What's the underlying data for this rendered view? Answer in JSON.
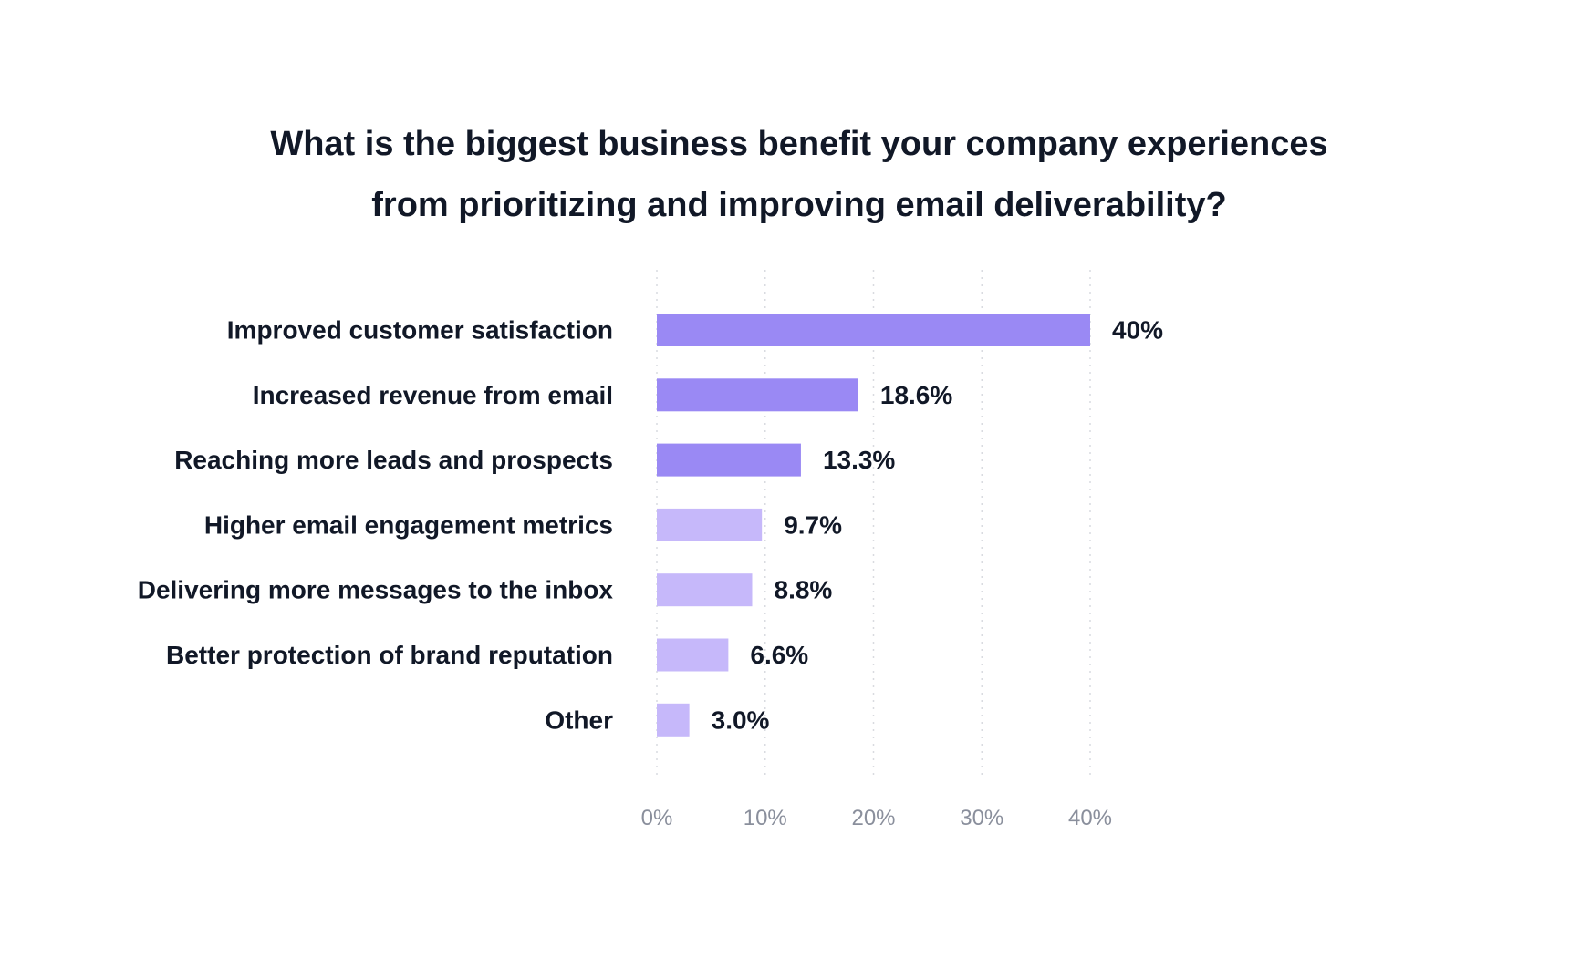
{
  "chart_data": {
    "type": "bar",
    "orientation": "horizontal",
    "title": [
      "What is the biggest business benefit your company experiences",
      "from prioritizing and improving email deliverability?"
    ],
    "categories": [
      "Improved customer satisfaction",
      "Increased revenue from email",
      "Reaching more leads and prospects",
      "Higher email engagement metrics",
      "Delivering more messages to the inbox",
      "Better protection of brand reputation",
      "Other"
    ],
    "values": [
      40,
      18.6,
      13.3,
      9.7,
      8.8,
      6.6,
      3.0
    ],
    "value_labels": [
      "40%",
      "18.6%",
      "13.3%",
      "9.7%",
      "8.8%",
      "6.6%",
      "3.0%"
    ],
    "xlim": [
      0,
      40
    ],
    "ticks": [
      0,
      10,
      20,
      30,
      40
    ],
    "tick_labels": [
      "0%",
      "10%",
      "20%",
      "30%",
      "40%"
    ],
    "xlabel": "",
    "ylabel": "",
    "grid": true,
    "colors": {
      "highlight": "#9a89f4",
      "muted": "#c6b8fa"
    },
    "highlight_top_n": 3
  }
}
